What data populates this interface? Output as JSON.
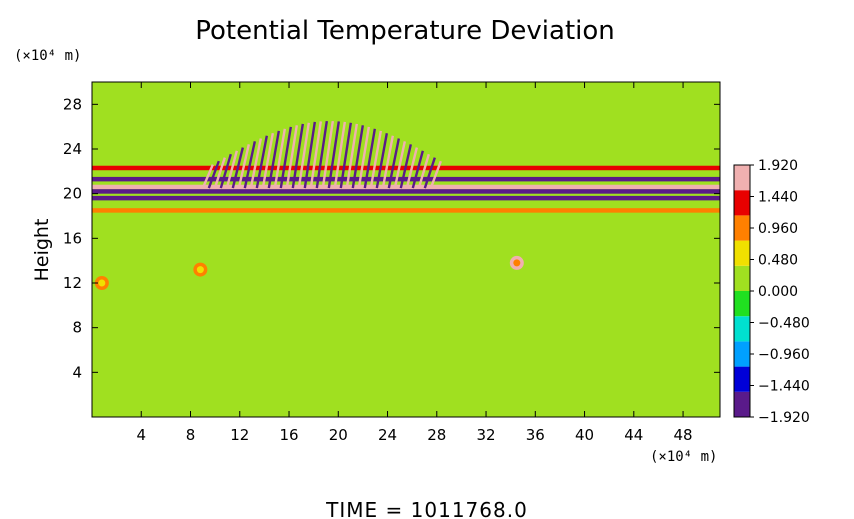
{
  "chart_data": {
    "type": "heatmap",
    "title": "Potential Temperature Deviation",
    "xlabel": "",
    "ylabel": "Height",
    "x_unit_label": "(×10⁴ m)",
    "y_unit_label": "(×10⁴ m)",
    "xlim": [
      0,
      51
    ],
    "ylim": [
      0,
      30
    ],
    "x_ticks": [
      4,
      8,
      12,
      16,
      20,
      24,
      28,
      32,
      36,
      40,
      44,
      48
    ],
    "y_ticks": [
      4,
      8,
      12,
      16,
      20,
      24,
      28
    ],
    "colorbar": {
      "range": [
        -1.92,
        1.92
      ],
      "tick_labels": [
        "1.920",
        "1.440",
        "0.960",
        "0.480",
        "0.000",
        "−0.480",
        "−0.960",
        "−1.440",
        "−1.920"
      ],
      "tick_values": [
        1.92,
        1.44,
        0.96,
        0.48,
        0.0,
        -0.48,
        -0.96,
        -1.44,
        -1.92
      ]
    },
    "background_value": 0.1,
    "features": [
      {
        "kind": "band",
        "y_center": 20.6,
        "value": 1.9
      },
      {
        "kind": "band",
        "y_center": 20.2,
        "value": -1.9
      },
      {
        "kind": "band",
        "y_center": 21.3,
        "value": -1.6
      },
      {
        "kind": "band",
        "y_center": 19.6,
        "value": -1.9
      },
      {
        "kind": "band",
        "y_center": 22.3,
        "value": 1.2
      },
      {
        "kind": "band",
        "y_center": 18.5,
        "value": 0.9
      },
      {
        "kind": "blob",
        "x": 34.5,
        "y": 13.8,
        "value": 1.9
      },
      {
        "kind": "blob",
        "x": 8.8,
        "y": 13.2,
        "value": 0.9
      },
      {
        "kind": "blob",
        "x": 0.8,
        "y": 12.0,
        "value": 0.9
      }
    ],
    "wave_region": {
      "x_range": [
        9,
        28
      ],
      "y_range": [
        20.5,
        26.5
      ],
      "amplitude": 1.9
    }
  },
  "footer": {
    "time_label": "TIME = 1011768.0"
  },
  "colors": {
    "colormap": [
      "#5a1a8a",
      "#0000d8",
      "#00a0ff",
      "#00e0d0",
      "#20e020",
      "#a0e020",
      "#f0e000",
      "#ff8000",
      "#e80000",
      "#f0b0b0"
    ]
  }
}
